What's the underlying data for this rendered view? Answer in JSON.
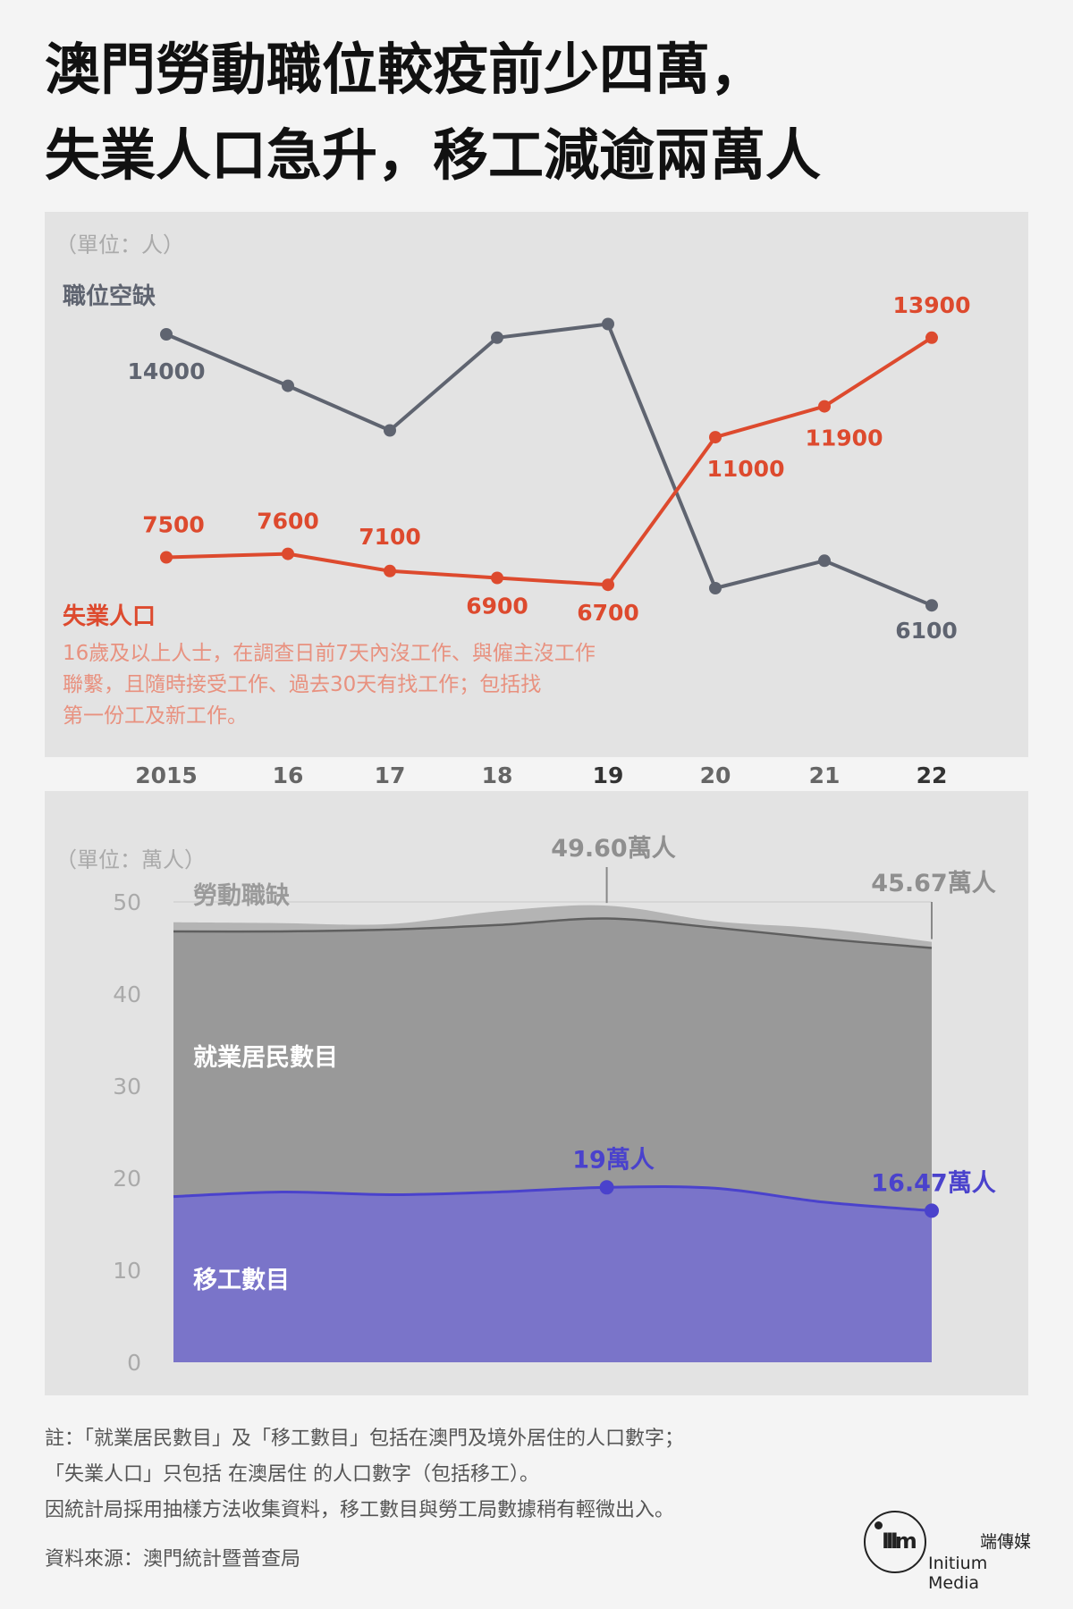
{
  "title_lines": [
    "澳門勞動職位較疫前少四萬，",
    "失業人口急升，移工減逾兩萬人"
  ],
  "chart_data": [
    {
      "type": "line",
      "unit_label": "（單位：人）",
      "categories": [
        "2015",
        "16",
        "17",
        "18",
        "19",
        "20",
        "21",
        "22"
      ],
      "bold_categories": [
        "19",
        "22"
      ],
      "series": [
        {
          "name": "職位空缺",
          "color": "#5f6470",
          "values": [
            14000,
            12500,
            11200,
            13900,
            14300,
            6600,
            7400,
            6100
          ],
          "labels": [
            "14000",
            "",
            "",
            "",
            "",
            "",
            "",
            "6100"
          ]
        },
        {
          "name": "失業人口",
          "color": "#dd4a2e",
          "values": [
            7500,
            7600,
            7100,
            6900,
            6700,
            11000,
            11900,
            13900
          ],
          "labels": [
            "7500",
            "7600",
            "7100",
            "6900",
            "6700",
            "11000",
            "11900",
            "13900"
          ],
          "note": "16歲及以上人士，在調查日前7天內沒工作、與僱主沒工作聯繫，且隨時接受工作、過去30天有找工作；包括找第一份工及新工作。",
          "note_color": "#e8917f"
        }
      ]
    },
    {
      "type": "area",
      "unit_label": "（單位：萬人）",
      "categories": [
        "2015",
        "16",
        "17",
        "18",
        "19",
        "20",
        "21",
        "22"
      ],
      "ylim": [
        0,
        50
      ],
      "yticks": [
        "0",
        "10",
        "20",
        "30",
        "40",
        "50"
      ],
      "series": [
        {
          "name": "勞動職缺",
          "color": "#b4b4b4",
          "values": [
            47.8,
            47.7,
            47.6,
            49.0,
            49.6,
            47.9,
            47.1,
            45.67
          ],
          "annotations": [
            {
              "index": 4,
              "text": "49.60萬人"
            },
            {
              "index": 7,
              "text": "45.67萬人"
            }
          ]
        },
        {
          "name": "就業居民數目",
          "color": "#999999",
          "line_color": "#5f5f5f",
          "values": [
            46.8,
            46.8,
            47.0,
            47.5,
            48.2,
            47.2,
            46.0,
            45.0
          ]
        },
        {
          "name": "移工數目",
          "color": "#7a74c9",
          "line_color": "#4a42cc",
          "values": [
            18.0,
            18.5,
            18.2,
            18.5,
            19.0,
            18.9,
            17.4,
            16.47
          ],
          "annotations": [
            {
              "index": 4,
              "text": "19萬人"
            },
            {
              "index": 7,
              "text": "16.47萬人"
            }
          ]
        }
      ]
    }
  ],
  "notes": [
    "註：「就業居民數目」及「移工數目」包括在澳門及境外居住的人口數字；",
    "「失業人口」只包括 在澳居住 的人口數字（包括移工）。",
    "因統計局採用抽樣方法收集資料，移工數目與勞工局數據稍有輕微出入。"
  ],
  "source": "資料來源：澳門統計暨普查局",
  "logo": {
    "mark": "IIIm",
    "name_cn": "端傳媒",
    "name_en": "Initium Media"
  }
}
